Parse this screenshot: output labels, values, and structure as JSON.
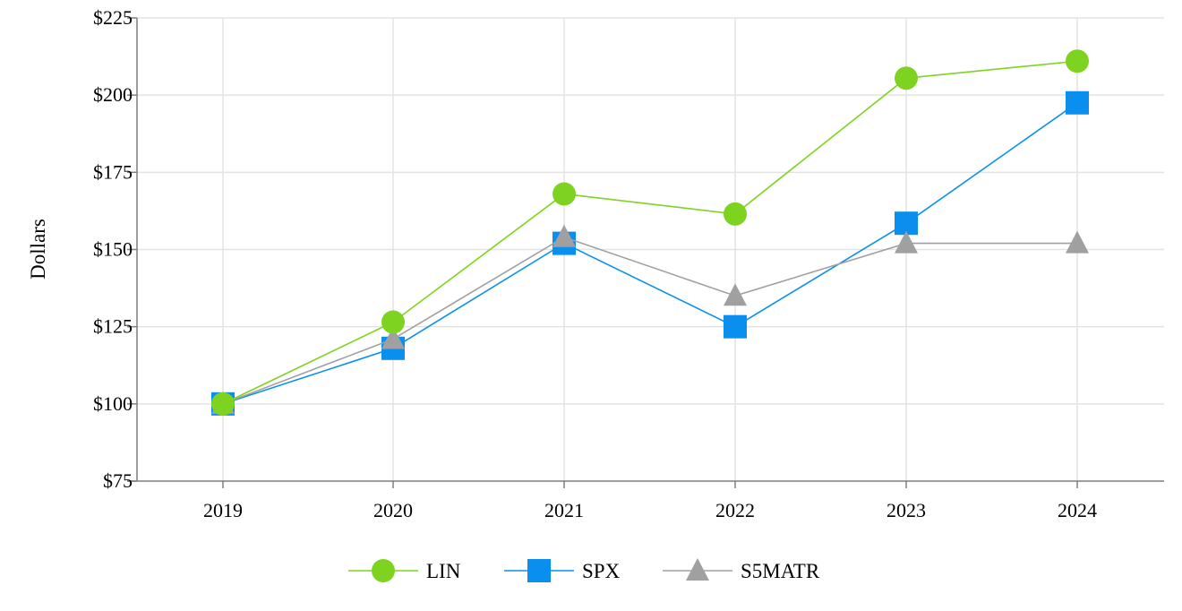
{
  "chart_data": {
    "type": "line",
    "title": "",
    "xlabel": "",
    "ylabel": "Dollars",
    "categories": [
      "2019",
      "2020",
      "2021",
      "2022",
      "2023",
      "2024"
    ],
    "ylim": [
      75,
      225
    ],
    "yticks": [
      75,
      100,
      125,
      150,
      175,
      200,
      225
    ],
    "ytick_labels": [
      "$75",
      "$100",
      "$125",
      "$150",
      "$175",
      "$200",
      "$225"
    ],
    "grid": true,
    "legend_position": "bottom-center",
    "series": [
      {
        "name": "SPX",
        "marker": "square",
        "color": "#0a8fef",
        "values": [
          100,
          118,
          152,
          125,
          158.5,
          197.5
        ]
      },
      {
        "name": "S5MATR",
        "marker": "triangle",
        "color": "#a0a0a0",
        "values": [
          100,
          121,
          154,
          135,
          152,
          152
        ]
      },
      {
        "name": "LIN",
        "marker": "circle",
        "color": "#7ed321",
        "values": [
          100,
          126.5,
          168,
          161.5,
          205.5,
          211
        ]
      }
    ],
    "legend_order": [
      "LIN",
      "SPX",
      "S5MATR"
    ]
  }
}
